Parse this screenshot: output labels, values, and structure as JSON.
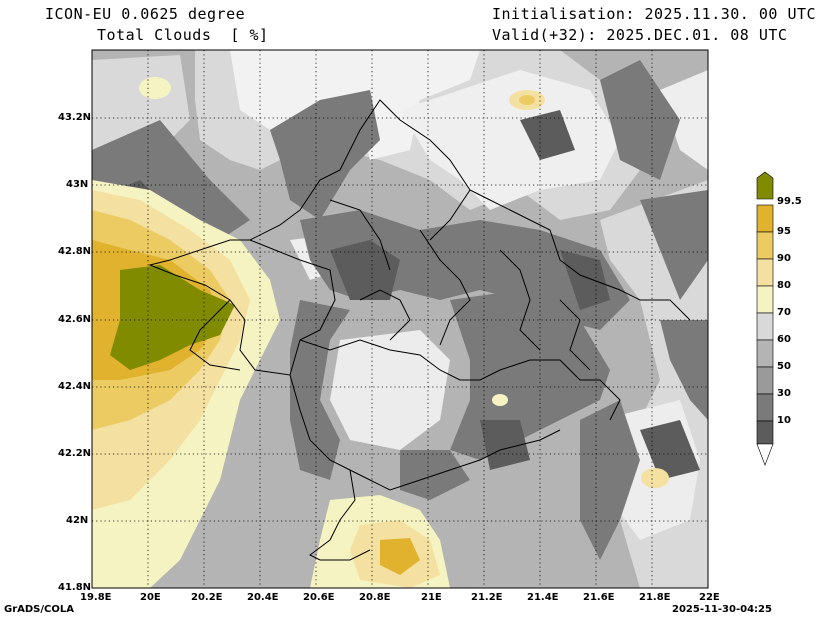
{
  "header": {
    "model": "ICON-EU 0.0625 degree",
    "field": "Total Clouds  [ %]",
    "init": "Initialisation: 2025.11.30. 00 UTC",
    "valid": "Valid(+32): 2025.DEC.01. 08 UTC"
  },
  "axes": {
    "lat_labels": [
      "43.2N",
      "43N",
      "42.8N",
      "42.6N",
      "42.4N",
      "42.2N",
      "42N",
      "41.8N"
    ],
    "lon_labels": [
      "19.8E",
      "20E",
      "20.2E",
      "20.4E",
      "20.6E",
      "20.8E",
      "21E",
      "21.2E",
      "21.4E",
      "21.6E",
      "21.8E",
      "22E"
    ]
  },
  "colorbar": {
    "labels": [
      "99.5",
      "95",
      "90",
      "80",
      "70",
      "60",
      "50",
      "30",
      "10"
    ],
    "colors": [
      "#808b00",
      "#e0b22e",
      "#eccb63",
      "#f4e0a0",
      "#f6f3c2",
      "#d9d9d9",
      "#b4b4b4",
      "#9a9a9a",
      "#7a7a7a",
      "#5c5c5c",
      "#ffffff"
    ]
  },
  "footer": {
    "left": "GrADS/COLA",
    "right": "2025-11-30-04:25"
  }
}
